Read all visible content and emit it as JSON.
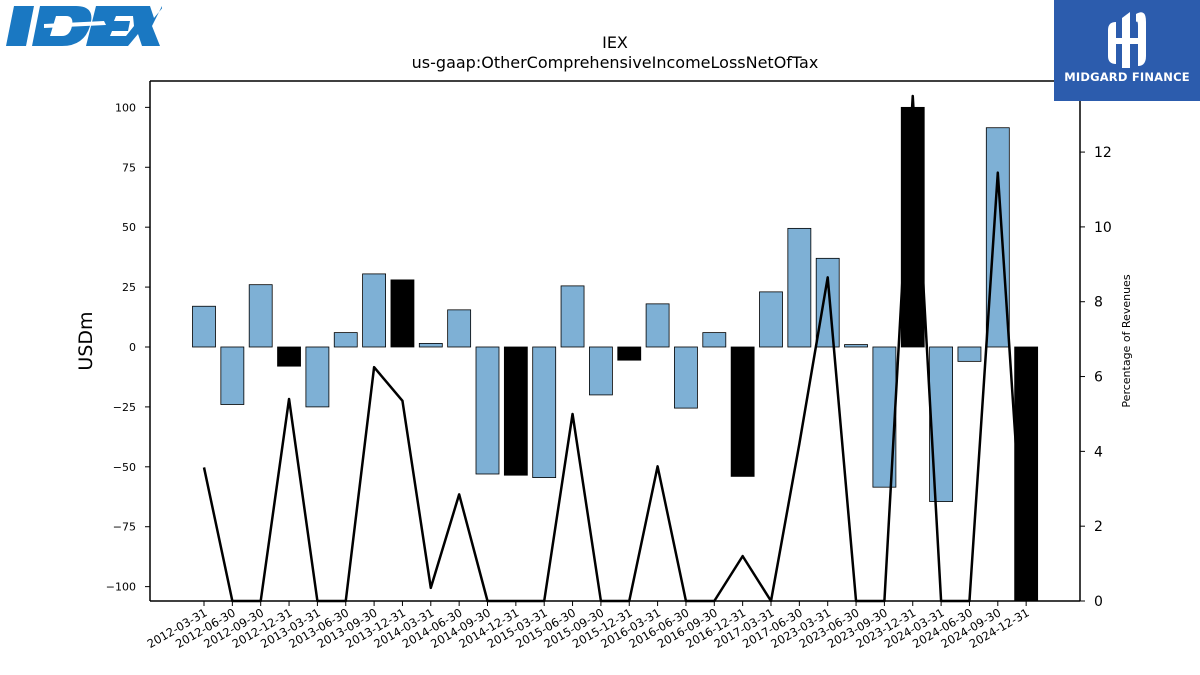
{
  "logos": {
    "left": {
      "name": "IDEX",
      "color": "#1a78c2"
    },
    "right": {
      "name": "MIDGARD FINANCE",
      "background": "#2c5cad"
    }
  },
  "chart_data": {
    "type": "bar",
    "title": "IEX",
    "subtitle": "us-gaap:OtherComprehensiveIncomeLossNetOfTax",
    "ylabel": "USDm",
    "y2label": "Percentage of Revenues",
    "ylim": [
      -106,
      111
    ],
    "y2lim": [
      0,
      13.9
    ],
    "yticks": [
      100,
      75,
      50,
      25,
      0,
      -25,
      -50,
      -75,
      -100
    ],
    "y2ticks": [
      0,
      2,
      4,
      6,
      8,
      10,
      12
    ],
    "categories": [
      "2012-03-31",
      "2012-06-30",
      "2012-09-30",
      "2012-12-31",
      "2013-03-31",
      "2013-06-30",
      "2013-09-30",
      "2013-12-31",
      "2014-03-31",
      "2014-06-30",
      "2014-09-30",
      "2014-12-31",
      "2015-03-31",
      "2015-06-30",
      "2015-09-30",
      "2015-12-31",
      "2016-03-31",
      "2016-06-30",
      "2016-09-30",
      "2016-12-31",
      "2017-03-31",
      "2017-06-30",
      "2023-03-31",
      "2023-06-30",
      "2023-09-30",
      "2023-12-31",
      "2024-03-31",
      "2024-06-30",
      "2024-09-30",
      "2024-12-31"
    ],
    "series": [
      {
        "type": "bar",
        "values": [
          17,
          -24,
          26,
          -8,
          -25,
          6,
          30.5,
          28,
          1.5,
          15.5,
          -53,
          -53.5,
          -54.5,
          25.5,
          -20,
          -5.5,
          18,
          -25.5,
          6,
          -54,
          23,
          49.5,
          37,
          1,
          -58.5,
          100,
          -64.5,
          -6,
          91.5,
          0
        ],
        "highlight": [
          false,
          false,
          false,
          true,
          false,
          false,
          false,
          true,
          false,
          false,
          false,
          true,
          false,
          false,
          false,
          true,
          false,
          false,
          false,
          true,
          false,
          false,
          false,
          false,
          false,
          true,
          false,
          false,
          false,
          true
        ],
        "color": "#7eb0d5",
        "highlight_color": "#000000",
        "highlight_full_height": [
          false,
          false,
          false,
          false,
          false,
          false,
          false,
          false,
          false,
          false,
          false,
          false,
          false,
          false,
          false,
          false,
          false,
          false,
          false,
          false,
          false,
          false,
          false,
          false,
          false,
          false,
          false,
          false,
          false,
          true
        ]
      },
      {
        "type": "line",
        "axis": "right",
        "values": [
          3.57,
          0,
          0,
          5.4,
          0,
          0,
          6.25,
          5.35,
          0.35,
          2.85,
          0,
          0,
          0,
          5.0,
          0,
          0,
          3.6,
          0,
          0,
          1.2,
          0,
          4.2,
          8.65,
          0,
          0,
          13.5,
          0,
          0,
          11.45,
          0
        ],
        "color": "#000000"
      }
    ]
  }
}
